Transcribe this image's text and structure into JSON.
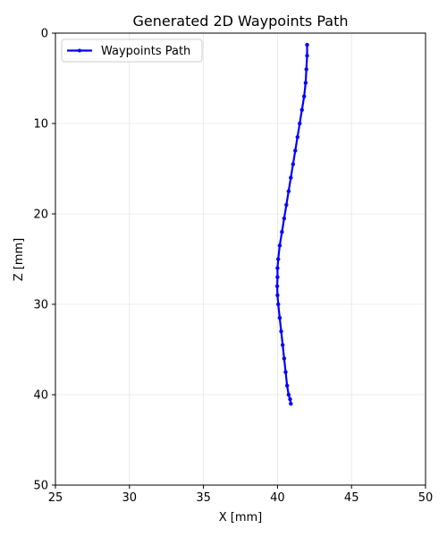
{
  "chart_data": {
    "type": "line",
    "title": "Generated 2D Waypoints Path",
    "xlabel": "X [mm]",
    "ylabel": "Z [mm]",
    "xlim": [
      25,
      50
    ],
    "ylim": [
      0,
      50
    ],
    "y_inverted": true,
    "xticks": [
      "25",
      "30",
      "35",
      "40",
      "45",
      "50"
    ],
    "yticks": [
      "0",
      "10",
      "20",
      "30",
      "40",
      "50"
    ],
    "grid": true,
    "legend_position": "top-left",
    "series": [
      {
        "name": "Waypoints Path",
        "color": "#0000ff",
        "marker": "dot",
        "x": [
          42.0,
          42.0,
          41.95,
          41.9,
          41.8,
          41.65,
          41.5,
          41.35,
          41.2,
          41.05,
          40.9,
          40.75,
          40.6,
          40.45,
          40.3,
          40.15,
          40.05,
          40.0,
          40.0,
          39.98,
          40.0,
          40.05,
          40.15,
          40.25,
          40.35,
          40.45,
          40.55,
          40.65,
          40.75,
          40.85,
          40.9
        ],
        "y": [
          1.3,
          2.5,
          4.0,
          5.5,
          7.0,
          8.5,
          10.0,
          11.5,
          13.0,
          14.5,
          16.0,
          17.5,
          19.0,
          20.5,
          22.0,
          23.5,
          25.0,
          26.0,
          27.0,
          28.0,
          29.0,
          30.0,
          31.5,
          33.0,
          34.5,
          36.0,
          37.5,
          39.0,
          40.0,
          40.5,
          41.0
        ]
      }
    ]
  }
}
